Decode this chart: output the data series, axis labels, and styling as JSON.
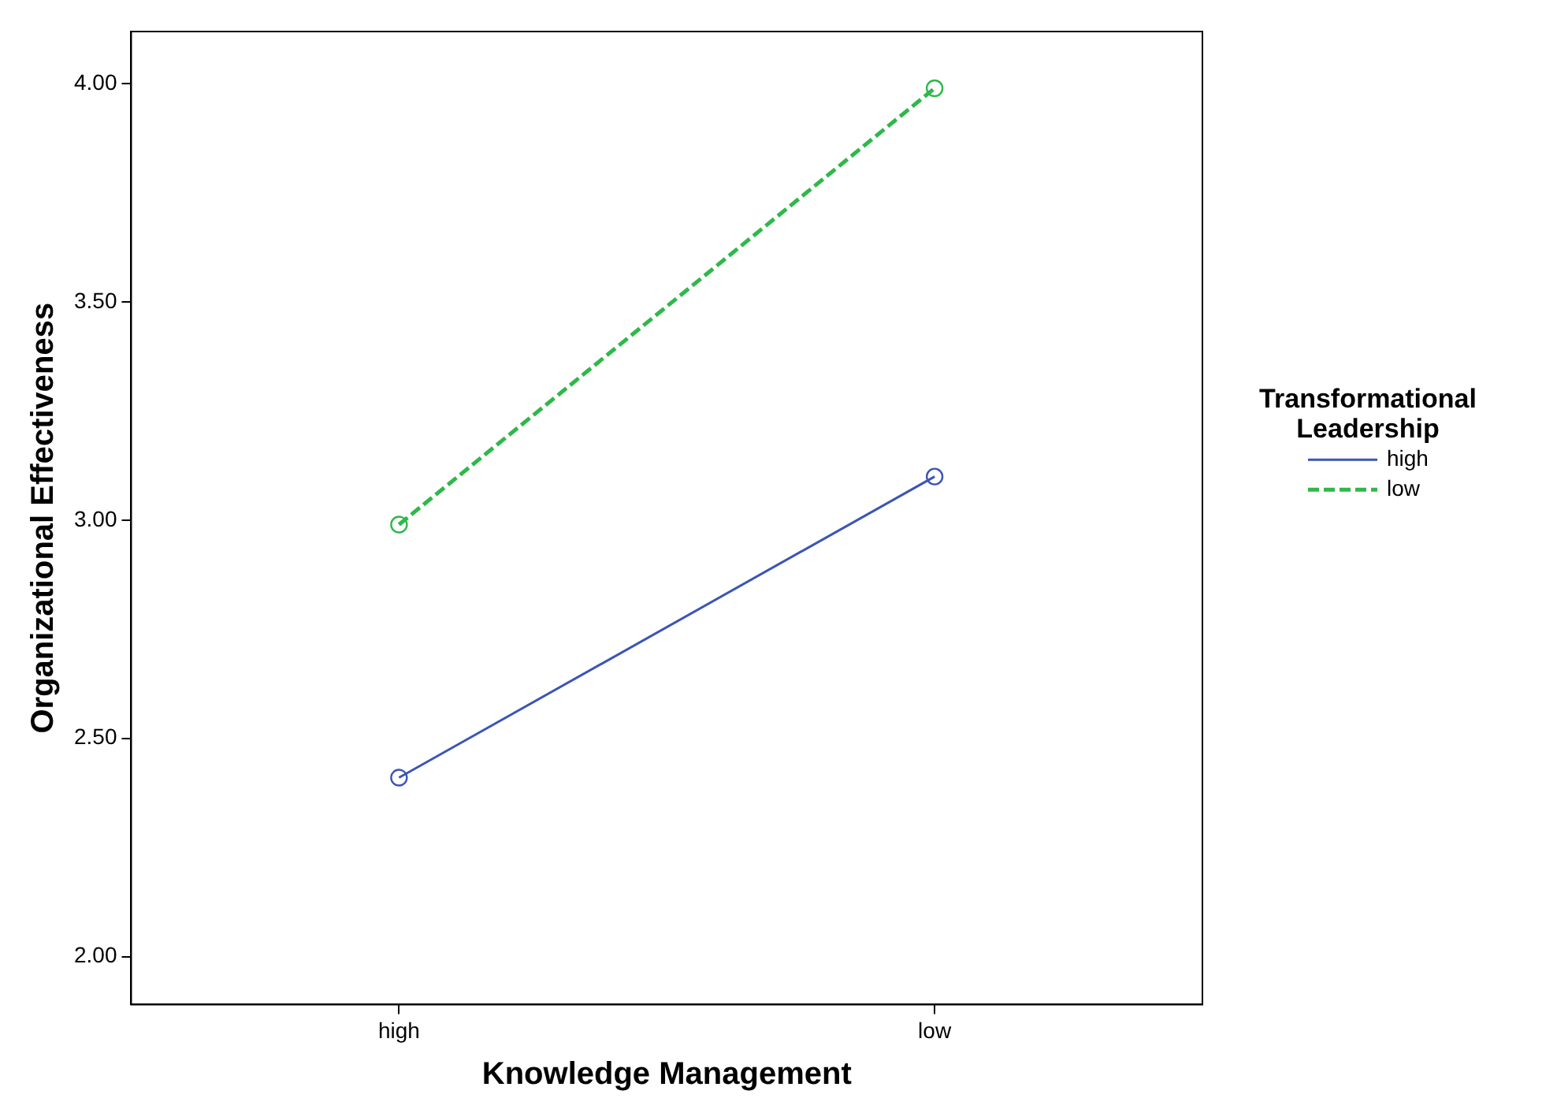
{
  "chart_data": {
    "type": "line",
    "xlabel": "Knowledge Management",
    "ylabel": "Organizational Effectiveness",
    "legend_title": "Transformational Leadership",
    "categories": [
      "high",
      "low"
    ],
    "series": [
      {
        "name": "high",
        "color": "#3c55b4",
        "values": [
          2.41,
          3.1
        ],
        "line_style": "solid"
      },
      {
        "name": "low",
        "color": "#2fb84a",
        "values": [
          2.99,
          3.99
        ],
        "line_style": "dashed"
      }
    ],
    "ylim": [
      1.89,
      4.12
    ],
    "yticks": [
      {
        "value": 2,
        "label": "2.00"
      },
      {
        "value": 2.5,
        "label": "2.50"
      },
      {
        "value": 3,
        "label": "3.00"
      },
      {
        "value": 3.5,
        "label": "3.50"
      },
      {
        "value": 4,
        "label": "4.00"
      }
    ],
    "grid": false,
    "legend": "right",
    "marker": "circle"
  }
}
